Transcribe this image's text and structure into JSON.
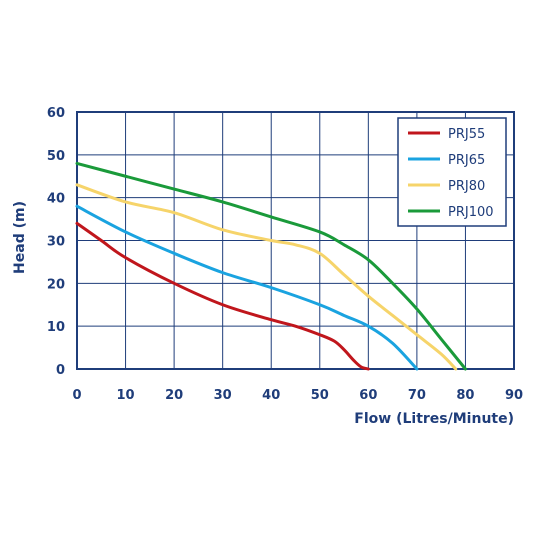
{
  "chart_data": {
    "type": "line",
    "xlabel": "Flow (Litres/Minute)",
    "ylabel": "Head (m)",
    "xlim": [
      0,
      90
    ],
    "ylim": [
      0,
      60
    ],
    "x_ticks": [
      0,
      10,
      20,
      30,
      40,
      50,
      60,
      70,
      80,
      90
    ],
    "y_ticks": [
      0,
      10,
      20,
      30,
      40,
      50,
      60
    ],
    "grid": true,
    "legend_position": "top-right",
    "series": [
      {
        "name": "PRJ55",
        "color": "#c0161c",
        "points": [
          [
            0,
            34
          ],
          [
            5,
            30
          ],
          [
            10,
            26
          ],
          [
            20,
            20
          ],
          [
            30,
            15
          ],
          [
            40,
            11.5
          ],
          [
            45,
            10
          ],
          [
            50,
            8
          ],
          [
            53,
            6.5
          ],
          [
            55,
            4.5
          ],
          [
            57,
            2
          ],
          [
            58.5,
            0.5
          ],
          [
            60,
            0
          ]
        ]
      },
      {
        "name": "PRJ65",
        "color": "#1aa3e0",
        "points": [
          [
            0,
            38
          ],
          [
            10,
            32
          ],
          [
            20,
            27
          ],
          [
            30,
            22.5
          ],
          [
            40,
            19
          ],
          [
            50,
            15
          ],
          [
            55,
            12.5
          ],
          [
            60,
            10
          ],
          [
            65,
            6
          ],
          [
            70,
            0
          ]
        ]
      },
      {
        "name": "PRJ80",
        "color": "#f6d46a",
        "points": [
          [
            0,
            43
          ],
          [
            10,
            39
          ],
          [
            20,
            36.5
          ],
          [
            30,
            32.5
          ],
          [
            40,
            30
          ],
          [
            45,
            29
          ],
          [
            50,
            27
          ],
          [
            55,
            22
          ],
          [
            60,
            17
          ],
          [
            65,
            12.5
          ],
          [
            70,
            8
          ],
          [
            75,
            3.5
          ],
          [
            78,
            0
          ]
        ]
      },
      {
        "name": "PRJ100",
        "color": "#1a9a3a",
        "points": [
          [
            0,
            48
          ],
          [
            10,
            45
          ],
          [
            20,
            42
          ],
          [
            30,
            39
          ],
          [
            40,
            35.5
          ],
          [
            50,
            32
          ],
          [
            55,
            29
          ],
          [
            60,
            25.5
          ],
          [
            65,
            20
          ],
          [
            70,
            14
          ],
          [
            75,
            7
          ],
          [
            80,
            0
          ]
        ]
      }
    ]
  }
}
